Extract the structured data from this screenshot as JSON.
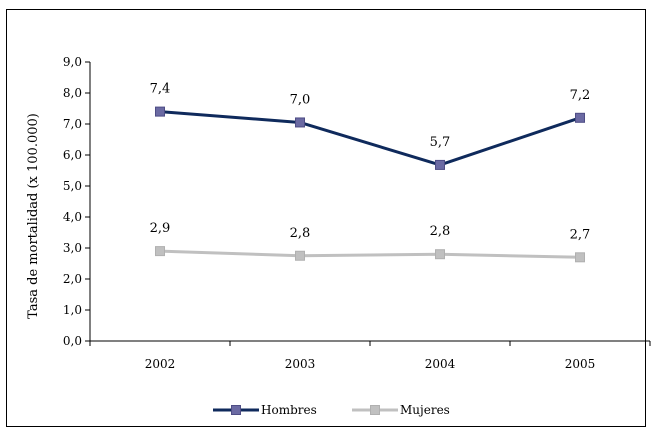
{
  "chart_data": {
    "type": "line",
    "title": "",
    "xlabel": "",
    "ylabel": "Tasa de mortalidad (x 100.000)",
    "categories": [
      "2002",
      "2003",
      "2004",
      "2005"
    ],
    "ylim": [
      0,
      9
    ],
    "yticks": [
      "0,0",
      "1,0",
      "2,0",
      "3,0",
      "4,0",
      "5,0",
      "6,0",
      "7,0",
      "8,0",
      "9,0"
    ],
    "grid": false,
    "legend": "bottom",
    "series": [
      {
        "name": "Hombres",
        "values": [
          7.4,
          7.05,
          5.68,
          7.2
        ],
        "labels": [
          "7,4",
          "7,0",
          "5,7",
          "7,2"
        ],
        "color": "#0f2a5c",
        "marker_color": "#6b6aa3"
      },
      {
        "name": "Mujeres",
        "values": [
          2.9,
          2.75,
          2.8,
          2.7
        ],
        "labels": [
          "2,9",
          "2,8",
          "2,8",
          "2,7"
        ],
        "color": "#c0c0c0",
        "marker_color": "#c0c0c0"
      }
    ]
  }
}
